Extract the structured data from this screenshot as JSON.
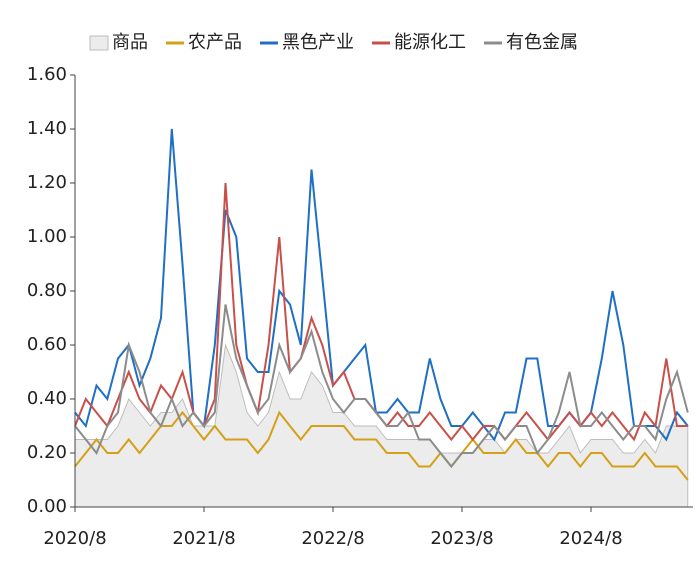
{
  "chart_data": {
    "type": "line",
    "categories": [
      "2020/8",
      null,
      null,
      null,
      null,
      null,
      null,
      null,
      null,
      null,
      null,
      null,
      "2021/8",
      null,
      null,
      null,
      null,
      null,
      null,
      null,
      null,
      null,
      null,
      null,
      "2022/8",
      null,
      null,
      null,
      null,
      null,
      null,
      null,
      null,
      null,
      null,
      null,
      "2023/8",
      null,
      null,
      null,
      null,
      null,
      null,
      null,
      null,
      null,
      null,
      null,
      "2024/8",
      null,
      null,
      null,
      null,
      null,
      null,
      null,
      null,
      null
    ],
    "ylim": [
      0,
      1.6
    ],
    "yticks": [
      {
        "value": 0,
        "label": "0.00"
      },
      {
        "value": 0.2,
        "label": "0.20"
      },
      {
        "value": 0.4,
        "label": "0.40"
      },
      {
        "value": 0.6,
        "label": "0.60"
      },
      {
        "value": 0.8,
        "label": "0.80"
      },
      {
        "value": 1,
        "label": "1.00"
      },
      {
        "value": 1.2,
        "label": "1.20"
      },
      {
        "value": 1.4,
        "label": "1.40"
      },
      {
        "value": 1.6,
        "label": "1.60"
      }
    ],
    "series": [
      {
        "name": "商品",
        "color": "#ececec",
        "area": true,
        "values": [
          0.25,
          0.25,
          0.25,
          0.25,
          0.3,
          0.4,
          0.35,
          0.3,
          0.35,
          0.35,
          0.4,
          0.3,
          0.3,
          0.3,
          0.6,
          0.5,
          0.35,
          0.3,
          0.35,
          0.5,
          0.4,
          0.4,
          0.5,
          0.45,
          0.35,
          0.35,
          0.3,
          0.3,
          0.3,
          0.25,
          0.25,
          0.25,
          0.25,
          0.25,
          0.2,
          0.2,
          0.2,
          0.2,
          0.25,
          0.25,
          0.2,
          0.25,
          0.25,
          0.2,
          0.2,
          0.25,
          0.3,
          0.2,
          0.25,
          0.25,
          0.25,
          0.2,
          0.2,
          0.25,
          0.2,
          0.3,
          0.3,
          0.3
        ]
      },
      {
        "name": "农产品",
        "color": "#d4a017",
        "values": [
          0.15,
          0.2,
          0.25,
          0.2,
          0.2,
          0.25,
          0.2,
          0.25,
          0.3,
          0.3,
          0.35,
          0.3,
          0.25,
          0.3,
          0.25,
          0.25,
          0.25,
          0.2,
          0.25,
          0.35,
          0.3,
          0.25,
          0.3,
          0.3,
          0.3,
          0.3,
          0.25,
          0.25,
          0.25,
          0.2,
          0.2,
          0.2,
          0.15,
          0.15,
          0.2,
          0.15,
          0.2,
          0.25,
          0.2,
          0.2,
          0.2,
          0.25,
          0.2,
          0.2,
          0.15,
          0.2,
          0.2,
          0.15,
          0.2,
          0.2,
          0.15,
          0.15,
          0.15,
          0.2,
          0.15,
          0.15,
          0.15,
          0.1
        ]
      },
      {
        "name": "黑色产业",
        "color": "#1f6fc5",
        "values": [
          0.35,
          0.3,
          0.45,
          0.4,
          0.55,
          0.6,
          0.45,
          0.55,
          0.7,
          1.4,
          0.9,
          0.35,
          0.3,
          0.6,
          1.1,
          1.0,
          0.55,
          0.5,
          0.5,
          0.8,
          0.75,
          0.6,
          1.25,
          0.85,
          0.45,
          0.5,
          0.55,
          0.6,
          0.35,
          0.35,
          0.4,
          0.35,
          0.35,
          0.55,
          0.4,
          0.3,
          0.3,
          0.35,
          0.3,
          0.25,
          0.35,
          0.35,
          0.55,
          0.55,
          0.3,
          0.3,
          0.35,
          0.3,
          0.35,
          0.55,
          0.8,
          0.6,
          0.3,
          0.3,
          0.3,
          0.25,
          0.35,
          0.3
        ]
      },
      {
        "name": "能源化工",
        "color": "#c9504a",
        "values": [
          0.3,
          0.4,
          0.35,
          0.3,
          0.4,
          0.5,
          0.4,
          0.35,
          0.45,
          0.4,
          0.5,
          0.35,
          0.3,
          0.4,
          1.2,
          0.6,
          0.45,
          0.35,
          0.6,
          1.0,
          0.5,
          0.55,
          0.7,
          0.6,
          0.45,
          0.5,
          0.4,
          0.4,
          0.35,
          0.3,
          0.35,
          0.3,
          0.3,
          0.35,
          0.3,
          0.25,
          0.3,
          0.25,
          0.3,
          0.3,
          0.25,
          0.3,
          0.35,
          0.3,
          0.25,
          0.3,
          0.35,
          0.3,
          0.35,
          0.3,
          0.35,
          0.3,
          0.25,
          0.35,
          0.3,
          0.55,
          0.3,
          0.3
        ]
      },
      {
        "name": "有色金属",
        "color": "#8c8c8c",
        "values": [
          0.3,
          0.25,
          0.2,
          0.3,
          0.35,
          0.6,
          0.5,
          0.35,
          0.3,
          0.4,
          0.3,
          0.35,
          0.3,
          0.35,
          0.75,
          0.55,
          0.45,
          0.35,
          0.4,
          0.6,
          0.5,
          0.55,
          0.65,
          0.5,
          0.4,
          0.35,
          0.4,
          0.4,
          0.35,
          0.3,
          0.3,
          0.35,
          0.25,
          0.25,
          0.2,
          0.15,
          0.2,
          0.2,
          0.25,
          0.3,
          0.25,
          0.3,
          0.3,
          0.2,
          0.25,
          0.35,
          0.5,
          0.3,
          0.3,
          0.35,
          0.3,
          0.25,
          0.3,
          0.3,
          0.25,
          0.4,
          0.5,
          0.35
        ]
      }
    ]
  }
}
